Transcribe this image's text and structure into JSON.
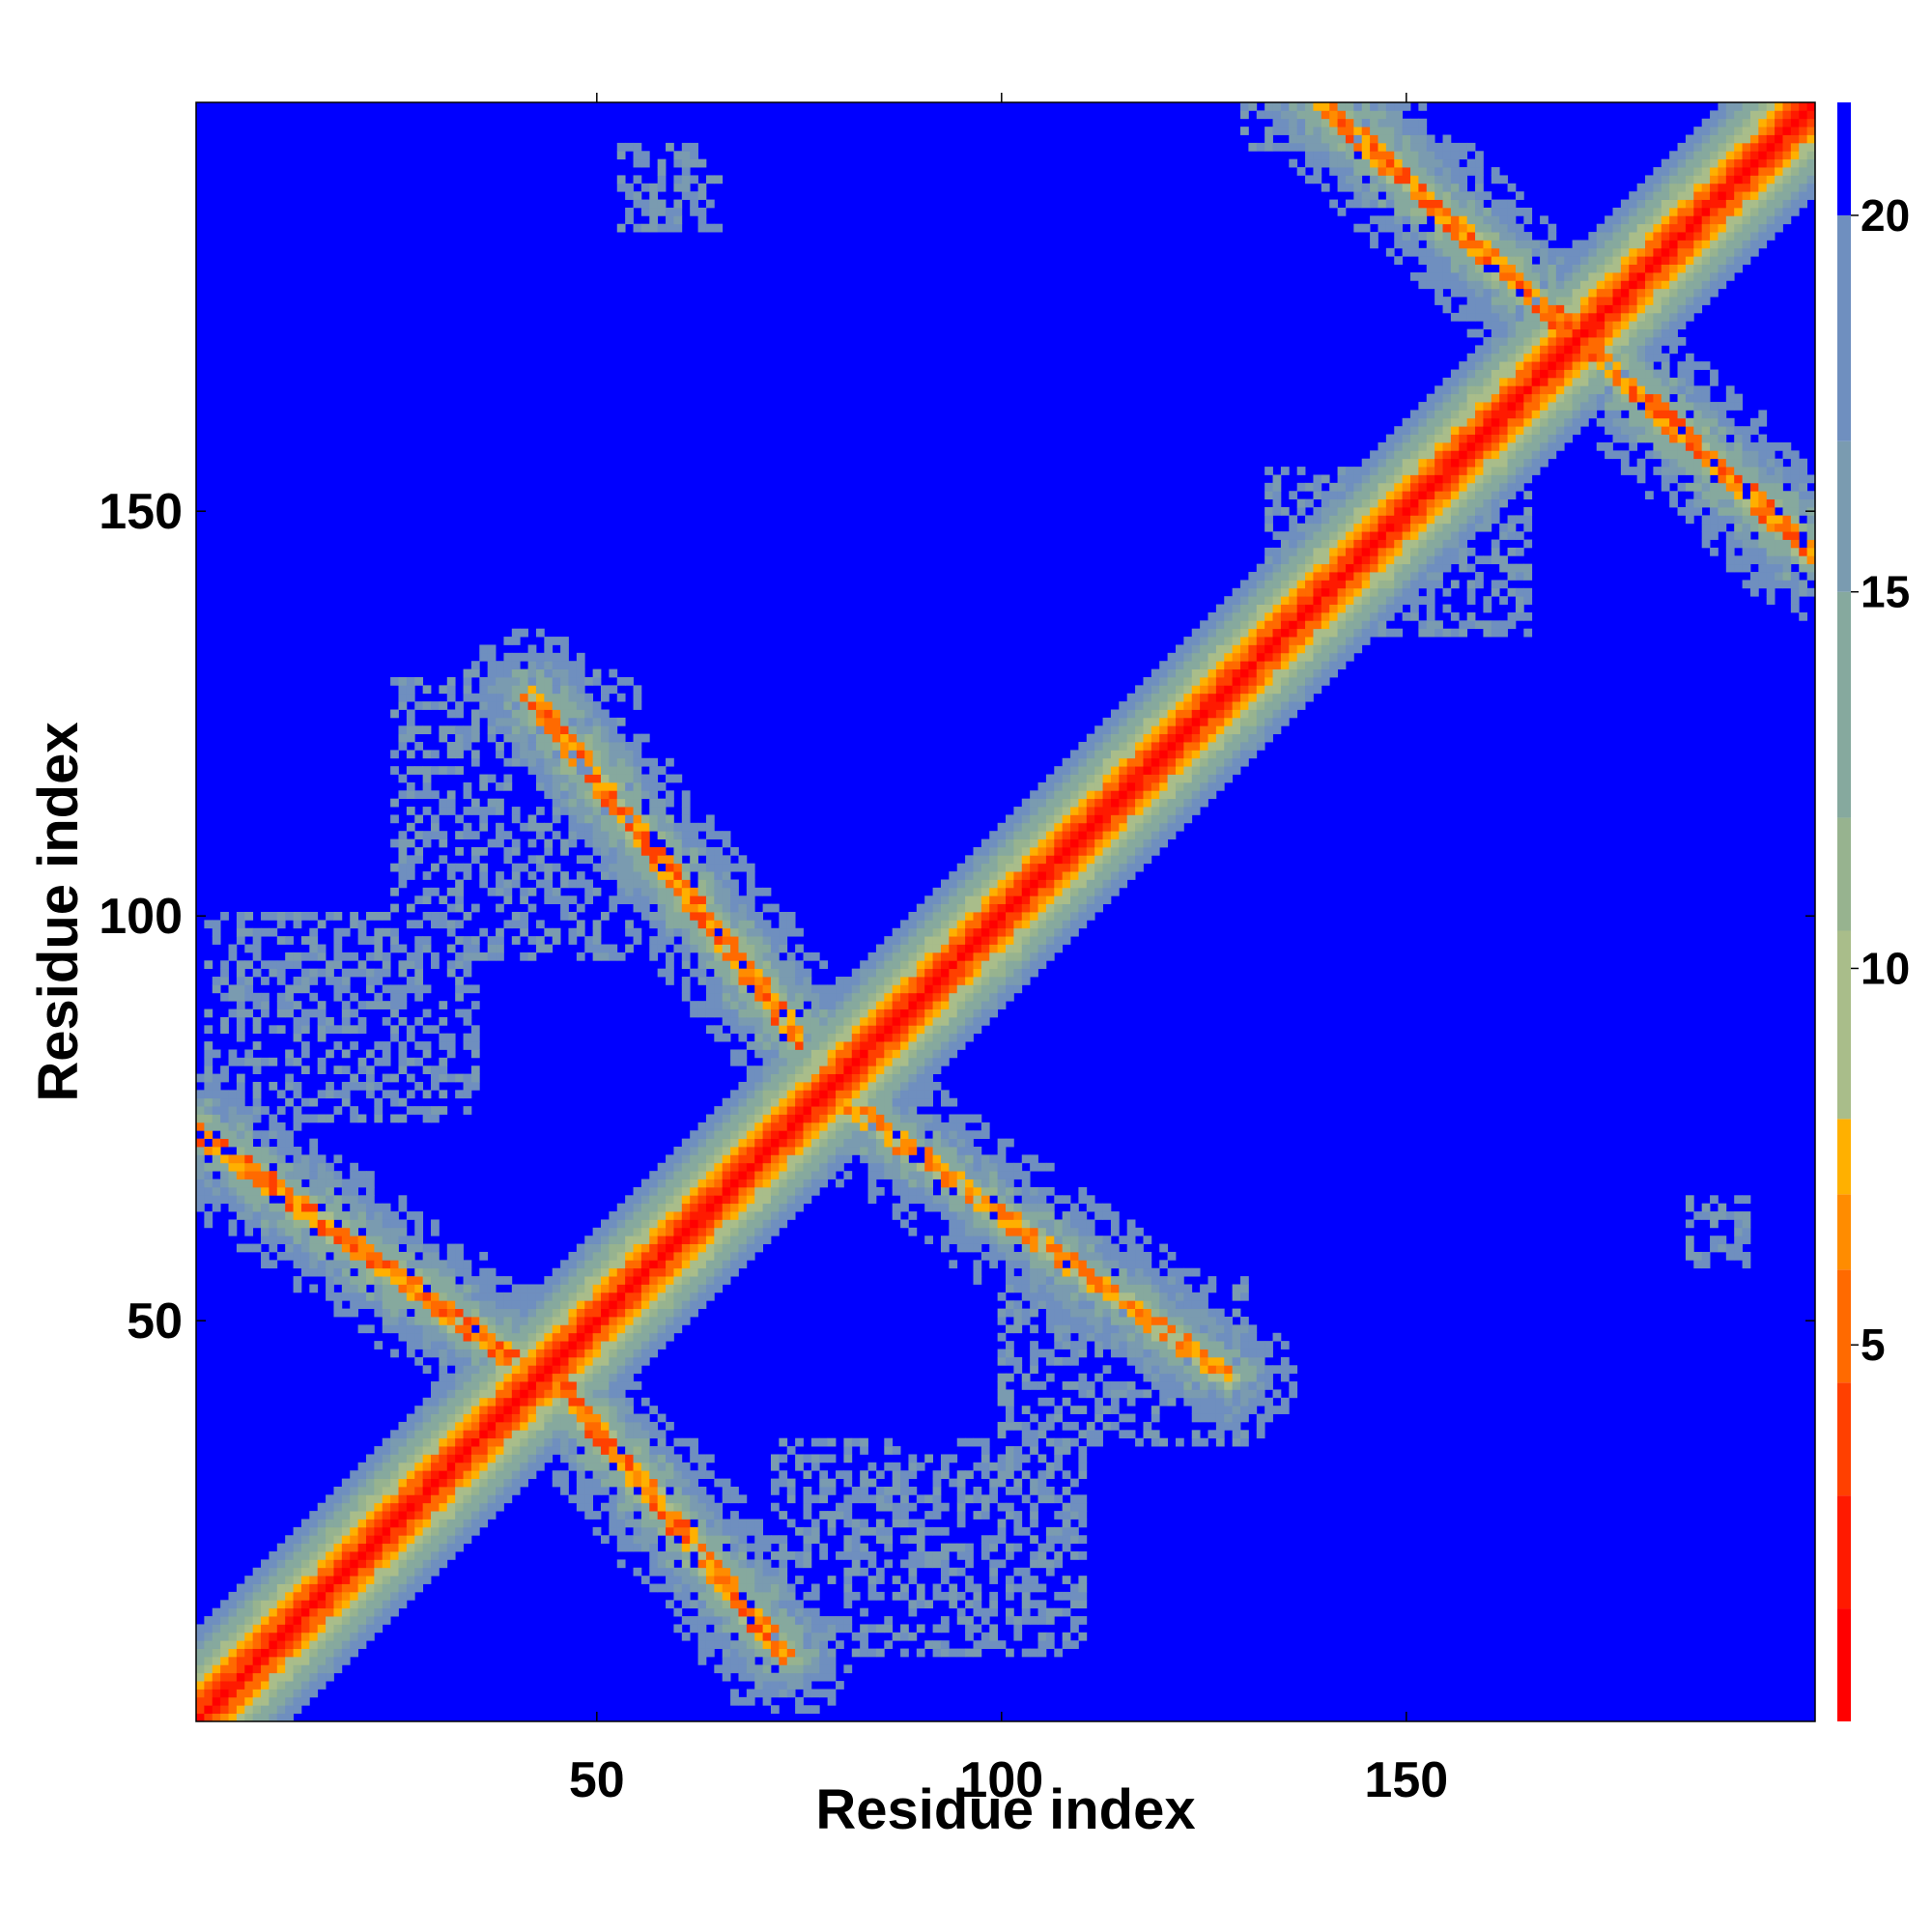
{
  "chart_data": {
    "type": "heatmap",
    "title": "",
    "xlabel": "Residue index",
    "ylabel": "Residue index",
    "n_residues": 200,
    "xlim": [
      1,
      200
    ],
    "ylim": [
      1,
      200
    ],
    "x_ticks": [
      50,
      100,
      150
    ],
    "y_ticks": [
      50,
      100,
      150
    ],
    "colorbar": {
      "ticks": [
        5,
        10,
        15,
        20
      ],
      "range": [
        0,
        21.5
      ],
      "levels": [
        {
          "max": 1.5,
          "color": "#ff0000"
        },
        {
          "max": 3.0,
          "color": "#ff1a00"
        },
        {
          "max": 4.5,
          "color": "#ff4000"
        },
        {
          "max": 6.0,
          "color": "#ff6a00"
        },
        {
          "max": 7.0,
          "color": "#ff8c00"
        },
        {
          "max": 8.0,
          "color": "#ffb000"
        },
        {
          "max": 10.5,
          "color": "#a9bd8a"
        },
        {
          "max": 12.0,
          "color": "#97b38f"
        },
        {
          "max": 15.0,
          "color": "#86a99e"
        },
        {
          "max": 17.0,
          "color": "#7a9bb0"
        },
        {
          "max": 20.0,
          "color": "#6f8fbf"
        },
        {
          "max": 99,
          "color": "#0000ff"
        }
      ]
    },
    "background_value": 21,
    "structure": {
      "diagonal": {
        "from": 1,
        "to": 200,
        "band_half_width": 11
      },
      "antidiagonal_segments": [
        {
          "from": [
            1,
            73
          ],
          "to": [
            40,
            45
          ],
          "peak_value": 6
        },
        {
          "from": [
            42,
            127
          ],
          "to": [
            75,
            85
          ],
          "peak_value": 6
        },
        {
          "from": [
            82,
            76
          ],
          "to": [
            128,
            43
          ],
          "peak_value": 7
        },
        {
          "from": [
            43,
            45
          ],
          "to": [
            73,
            9
          ],
          "peak_value": 6
        },
        {
          "from": [
            140,
            200
          ],
          "to": [
            200,
            145
          ],
          "peak_value": 6
        }
      ],
      "scatter_regions": [
        {
          "x": [
            2,
            35
          ],
          "y": [
            75,
            100
          ]
        },
        {
          "x": [
            25,
            55
          ],
          "y": [
            95,
            130
          ]
        },
        {
          "x": [
            72,
            110
          ],
          "y": [
            9,
            35
          ]
        },
        {
          "x": [
            100,
            130
          ],
          "y": [
            35,
            55
          ]
        },
        {
          "x": [
            133,
            165
          ],
          "y": [
            135,
            155
          ]
        },
        {
          "x": [
            130,
            150
          ],
          "y": [
            195,
            200
          ]
        },
        {
          "x": [
            53,
            65
          ],
          "y": [
            185,
            195
          ]
        },
        {
          "x": [
            185,
            192
          ],
          "y": [
            57,
            65
          ]
        }
      ]
    }
  }
}
